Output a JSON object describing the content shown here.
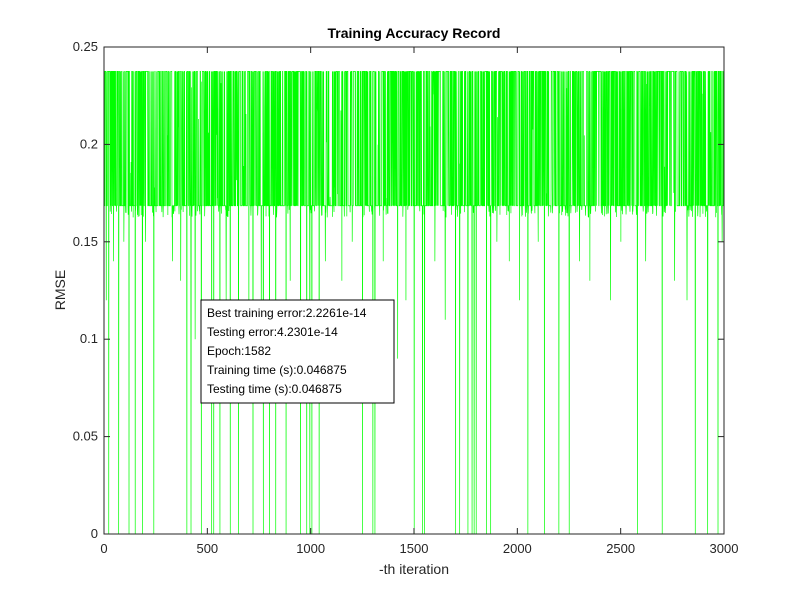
{
  "chart_data": {
    "type": "line",
    "title": "Training Accuracy Record",
    "xlabel": "-th iteration",
    "ylabel": "RMSE",
    "xlim": [
      0,
      3000
    ],
    "ylim": [
      0,
      0.25
    ],
    "xticks": [
      0,
      500,
      1000,
      1500,
      2000,
      2500,
      3000
    ],
    "yticks": [
      0,
      0.05,
      0.1,
      0.15,
      0.2,
      0.25
    ],
    "xtick_labels": [
      "0",
      "500",
      "1000",
      "1500",
      "2000",
      "2500",
      "3000"
    ],
    "ytick_labels": [
      "0",
      "0.05",
      "0.1",
      "0.15",
      "0.2",
      "0.25"
    ],
    "grid": false,
    "series": [
      {
        "color": "#00ff00",
        "num_points": 3000,
        "upper_level": 0.2375,
        "lower_level": 0.1685,
        "description_levels": "oscillates rapidly between about 0.1685 and 0.2375 with frequent drops toward 0",
        "dips_to_zero_x": [
          22,
          70,
          120,
          150,
          185,
          240,
          400,
          420,
          470,
          520,
          530,
          560,
          610,
          650,
          720,
          770,
          800,
          830,
          880,
          950,
          980,
          995,
          1005,
          1040,
          1250,
          1300,
          1310,
          1500,
          1540,
          1550,
          1700,
          1720,
          1760,
          1780,
          1790,
          1800,
          1850,
          1870,
          2050,
          2130,
          2200,
          2250,
          2580,
          2700,
          2860,
          2920,
          2970
        ],
        "partial_dips": [
          [
            10,
            0.12
          ],
          [
            45,
            0.14
          ],
          [
            95,
            0.15
          ],
          [
            200,
            0.15
          ],
          [
            330,
            0.14
          ],
          [
            370,
            0.13
          ],
          [
            440,
            0.1
          ],
          [
            590,
            0.12
          ],
          [
            700,
            0.1
          ],
          [
            760,
            0.11
          ],
          [
            900,
            0.13
          ],
          [
            1070,
            0.14
          ],
          [
            1150,
            0.13
          ],
          [
            1200,
            0.15
          ],
          [
            1350,
            0.14
          ],
          [
            1420,
            0.09
          ],
          [
            1460,
            0.12
          ],
          [
            1600,
            0.14
          ],
          [
            1650,
            0.11
          ],
          [
            1900,
            0.15
          ],
          [
            1960,
            0.14
          ],
          [
            2010,
            0.12
          ],
          [
            2100,
            0.15
          ],
          [
            2300,
            0.14
          ],
          [
            2350,
            0.13
          ],
          [
            2450,
            0.12
          ],
          [
            2500,
            0.15
          ],
          [
            2620,
            0.14
          ],
          [
            2760,
            0.13
          ],
          [
            2820,
            0.12
          ],
          [
            2990,
            0.15
          ]
        ]
      }
    ],
    "annotation_lines": [
      "Best training error:2.2261e-14",
      "Testing error:4.2301e-14",
      "Epoch:1582",
      "Training time (s):0.046875",
      "Testing time (s):0.046875"
    ]
  }
}
